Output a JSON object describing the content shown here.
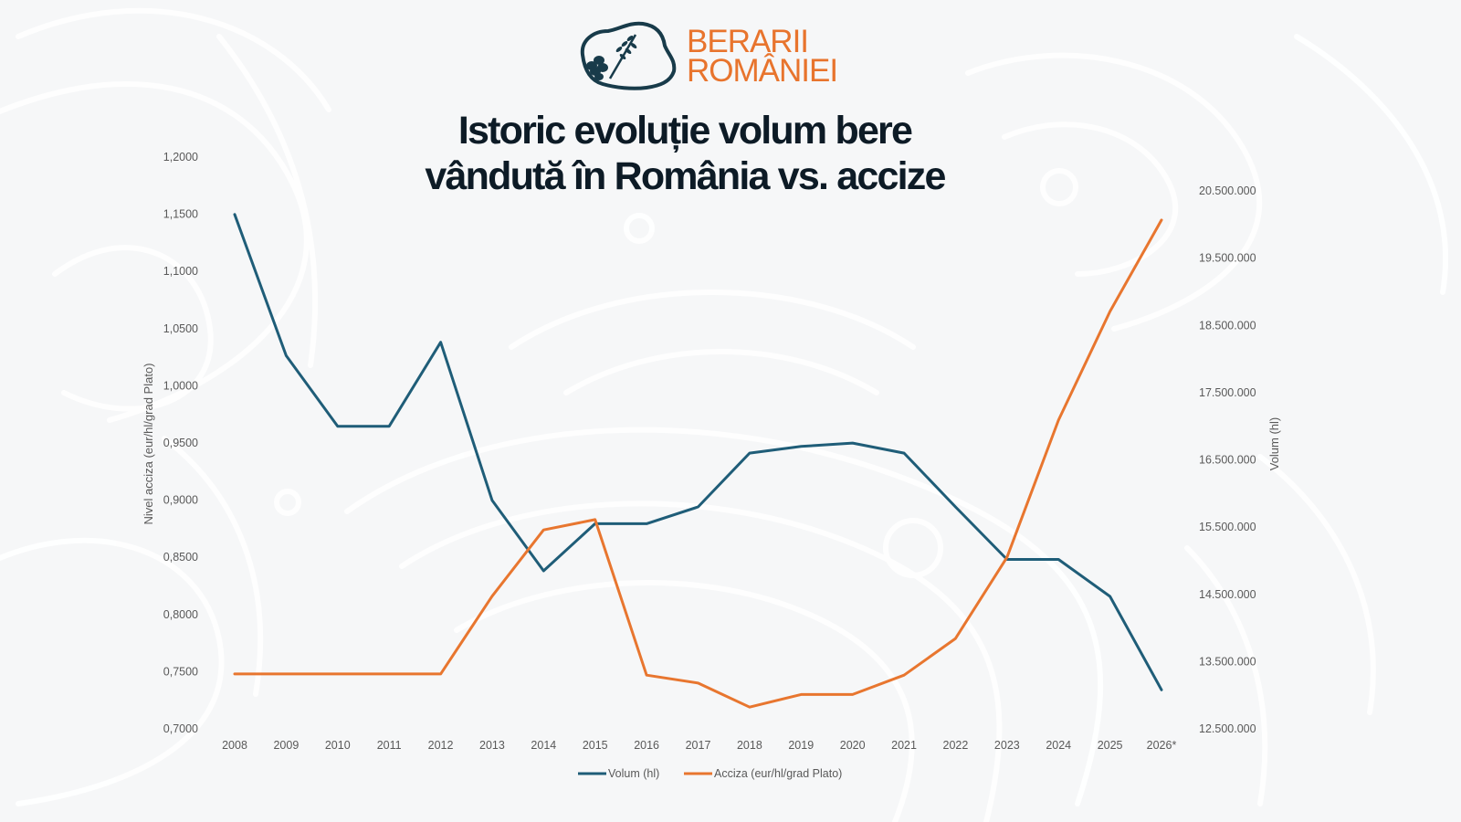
{
  "logo": {
    "line1": "BERARII",
    "line2": "ROMÂNIEI",
    "icon": "romania-map-hop-wheat-icon",
    "color": "#e8742d",
    "icon_color": "#183b4a"
  },
  "title": {
    "line1": "Istoric evoluție volum bere",
    "line2": "vândută în România vs. accize"
  },
  "chart_data": {
    "type": "line",
    "categories": [
      "2008",
      "2009",
      "2010",
      "2011",
      "2012",
      "2013",
      "2014",
      "2015",
      "2016",
      "2017",
      "2018",
      "2019",
      "2020",
      "2021",
      "2022",
      "2023",
      "2024",
      "2025",
      "2026*"
    ],
    "y_left": {
      "label": "Nivel acciza (eur/hl/grad Plato)",
      "min": 0.7,
      "max": 1.2,
      "step": 0.05,
      "ticks": [
        "0,7000",
        "0,7500",
        "0,8000",
        "0,8500",
        "0,9000",
        "0,9500",
        "1,0000",
        "1,0500",
        "1,1000",
        "1,1500",
        "1,2000"
      ]
    },
    "y_right": {
      "label": "Volum (hl)",
      "min": 12500000,
      "max": 20500000,
      "step": 1000000,
      "ticks": [
        "12.500.000",
        "13.500.000",
        "14.500.000",
        "15.500.000",
        "16.500.000",
        "17.500.000",
        "18.500.000",
        "19.500.000",
        "20.500.000"
      ]
    },
    "series": [
      {
        "name": "Volum (hl)",
        "axis": "right",
        "color": "#1f5d78",
        "values": [
          20150000,
          18050000,
          17000000,
          17000000,
          18250000,
          15900000,
          14850000,
          15550000,
          15550000,
          15800000,
          16600000,
          16700000,
          16750000,
          16600000,
          15800000,
          15020000,
          15020000,
          14470000,
          13080000
        ]
      },
      {
        "name": "Acciza (eur/hl/grad Plato)",
        "axis": "left",
        "color": "#e8762f",
        "values": [
          0.748,
          0.748,
          0.748,
          0.748,
          0.748,
          0.816,
          0.874,
          0.883,
          0.747,
          0.74,
          0.719,
          0.73,
          0.73,
          0.747,
          0.779,
          0.85,
          0.97,
          1.065,
          1.145
        ]
      }
    ],
    "legend": {
      "position": "bottom"
    },
    "grid": false
  }
}
